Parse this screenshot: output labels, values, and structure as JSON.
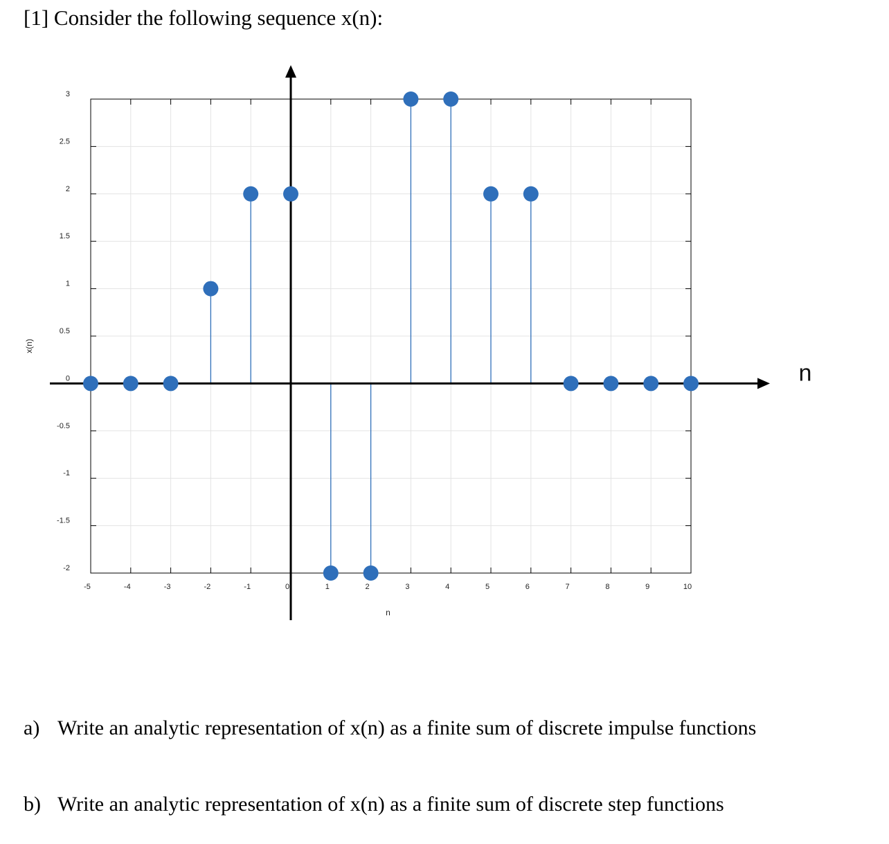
{
  "question": {
    "heading": "[1] Consider the following sequence x(n):"
  },
  "chart_data": {
    "type": "stem",
    "x": [
      -5,
      -4,
      -3,
      -2,
      -1,
      0,
      1,
      2,
      3,
      4,
      5,
      6,
      7,
      8,
      9,
      10
    ],
    "values": [
      0,
      0,
      0,
      1,
      2,
      2,
      -2,
      -2,
      3,
      3,
      2,
      2,
      0,
      0,
      0,
      0
    ],
    "xlabel": "n",
    "ylabel": "x(n)",
    "xlim": [
      -5,
      10
    ],
    "ylim": [
      -2,
      3
    ],
    "x_ticks": [
      "-5",
      "-4",
      "-3",
      "-2",
      "-1",
      "0",
      "1",
      "2",
      "3",
      "4",
      "5",
      "6",
      "7",
      "8",
      "9",
      "10"
    ],
    "y_ticks": [
      "3",
      "2.5",
      "2",
      "1.5",
      "1",
      "0.5",
      "0",
      "-0.5",
      "-1",
      "-1.5",
      "-2"
    ],
    "overlay_axis_label": "n",
    "grid": true,
    "stem_color": "#2f6fba",
    "axis_color": "#000000"
  },
  "parts": [
    {
      "marker": "a)",
      "text": "Write an analytic representation of x(n) as a finite sum of discrete impulse functions"
    },
    {
      "marker": "b)",
      "text": "Write an analytic representation of x(n) as a finite sum of discrete step functions"
    }
  ]
}
